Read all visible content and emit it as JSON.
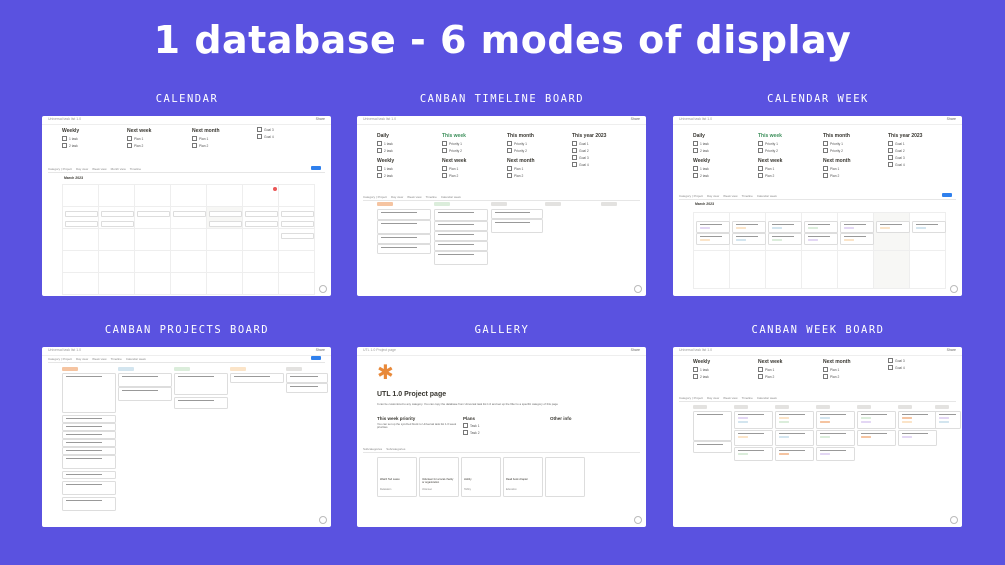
{
  "headline": "1 database - 6 modes of display",
  "labels": {
    "calendar": "CALENDAR",
    "timeline_board": "CANBAN TIMELINE BOARD",
    "calendar_week": "CALENDAR WEEK",
    "projects_board": "CANBAN PROJECTS BOARD",
    "gallery": "GALLERY",
    "week_board": "CANBAN WEEK BOARD"
  },
  "common": {
    "crumb": "Universal task list 1.0",
    "share": "Share",
    "daily": "Daily",
    "weekly": "Weekly",
    "this_week": "This week",
    "next_week": "Next week",
    "this_month": "This month",
    "next_month": "Next month",
    "this_year": "This year 2023",
    "task1": "1 task",
    "task2": "2 task",
    "plan1": "Plan 1",
    "plan2": "Plan 2",
    "priority1": "Priority 1",
    "priority2": "Priority 2",
    "goal1": "Goal 1",
    "goal2": "Goal 2",
    "goal3": "Goal 3",
    "goal4": "Goal 4",
    "month": "March 2023"
  },
  "gallery": {
    "crumb": "UTL 1.0 Project page",
    "page_title": "UTL 1.0 Project page",
    "description": "It can be customized to any category. You can copy the database from Universal task list 1.0 and set up the filter to a specific category of this page",
    "col1_title": "This week priority",
    "col1_text": "You can set up the synched block to Universal task list 1.0 week priorities",
    "col2_title": "Plans",
    "col2_items": [
      "Task 1",
      "Task 2"
    ],
    "col3_title": "Other info",
    "cards": [
      "Watch Ted Lasso",
      "Volunteer for a local charity or organization",
      "Hobby",
      "Read book chapter"
    ],
    "card_tags": [
      "Relaxation",
      "Volunteer",
      "Hobby",
      "Education"
    ]
  },
  "colors": {
    "background": "#5a52e0",
    "card": "#ffffff",
    "accent_blue": "#2f80ed",
    "today_red": "#eb5757",
    "green": "#3c8f5a",
    "orange_icon": "#e8893a"
  }
}
